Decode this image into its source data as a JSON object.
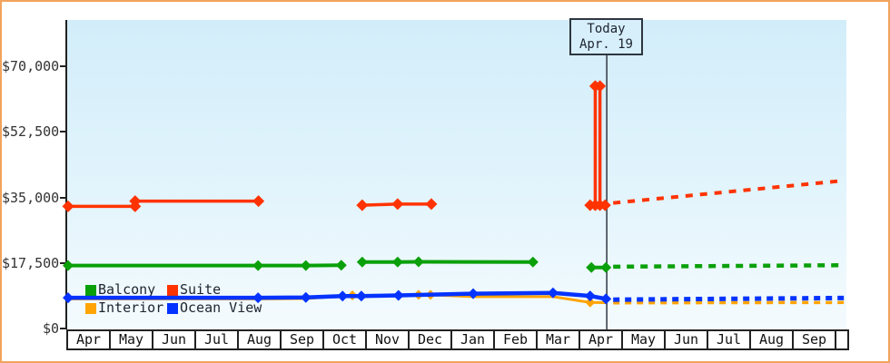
{
  "frame": {
    "border_color": "#f2a35c",
    "plot_bg_top": "#d2edfa",
    "plot_bg_bottom": "#f4fbfe"
  },
  "today_box": {
    "line1": "Today",
    "line2": "Apr. 19"
  },
  "legend": {
    "items": [
      {
        "id": "balcony",
        "label": "Balcony",
        "color": "#0aa00a"
      },
      {
        "id": "suite",
        "label": "Suite",
        "color": "#ff3300"
      },
      {
        "id": "interior",
        "label": "Interior",
        "color": "#ffa405"
      },
      {
        "id": "ocean-view",
        "label": "Ocean View",
        "color": "#0433ff"
      }
    ]
  },
  "chart_data": {
    "type": "line",
    "title": "",
    "xlabel": "",
    "ylabel": "",
    "ylim": [
      0,
      70000
    ],
    "grid": false,
    "legend_position": "bottom-left-inside",
    "y_ticks": [
      {
        "label": "$70,000",
        "value": 70000
      },
      {
        "label": "$52,500",
        "value": 52500
      },
      {
        "label": "$35,000",
        "value": 35000
      },
      {
        "label": "$17,500",
        "value": 17500
      },
      {
        "label": "$0",
        "value": 0
      }
    ],
    "x_tick_labels": [
      "Apr",
      "May",
      "Jun",
      "Jul",
      "Aug",
      "Sep",
      "Oct",
      "Nov",
      "Dec",
      "Jan",
      "Feb",
      "Mar",
      "Apr",
      "May",
      "Jun",
      "Jul",
      "Aug",
      "Sep"
    ],
    "x_unit": "months_from_first_Apr",
    "today": {
      "label_line1": "Today",
      "label_line2": "Apr. 19",
      "month_offset": 12.62
    },
    "series": [
      {
        "name": "Interior",
        "color": "#ffa405",
        "stroke_width": 3,
        "marker_r": 5.5,
        "dash": "7 6",
        "segments": [
          {
            "points": [
              [
                0,
                7900
              ],
              [
                4.45,
                7900
              ],
              [
                5.57,
                8000
              ],
              [
                6.44,
                8650
              ],
              [
                6.66,
                8850
              ],
              [
                6.89,
                8650
              ],
              [
                7.74,
                8850
              ],
              [
                8.21,
                9000
              ],
              [
                8.49,
                9000
              ],
              [
                9.49,
                8500
              ],
              [
                11.36,
                8500
              ],
              [
                12.23,
                6950
              ],
              [
                12.6,
                6900
              ]
            ],
            "markers": [
              [
                6.66,
                8850
              ],
              [
                8.21,
                9000
              ],
              [
                8.49,
                9000
              ],
              [
                12.23,
                6950
              ]
            ]
          }
        ],
        "projection": [
          [
            12.77,
            6850
          ],
          [
            18.19,
            6950
          ]
        ]
      },
      {
        "name": "Balcony",
        "color": "#0aa00a",
        "stroke_width": 4,
        "marker_r": 6,
        "dash": "8 7",
        "segments": [
          {
            "points": [
              [
                0,
                16800
              ],
              [
                4.45,
                16800
              ],
              [
                5.57,
                16800
              ],
              [
                6.4,
                16900
              ]
            ]
          },
          {
            "points": [
              [
                6.89,
                17750
              ],
              [
                7.72,
                17750
              ],
              [
                8.21,
                17800
              ],
              [
                10.89,
                17750
              ]
            ]
          },
          {
            "points": [
              [
                12.26,
                16300
              ],
              [
                12.6,
                16300
              ]
            ]
          }
        ],
        "projection": [
          [
            12.77,
            16500
          ],
          [
            18.19,
            16900
          ]
        ]
      },
      {
        "name": "Suite",
        "color": "#ff3300",
        "stroke_width": 3.5,
        "marker_r": 6.5,
        "dash": "8 8",
        "segments": [
          {
            "points": [
              [
                0,
                32600
              ],
              [
                1.57,
                32600
              ],
              [
                1.57,
                34000
              ],
              [
                4.46,
                34000
              ]
            ]
          },
          {
            "points": [
              [
                6.89,
                32900
              ],
              [
                7.72,
                33200
              ],
              [
                8.51,
                33200
              ]
            ]
          },
          {
            "points": [
              [
                12.23,
                32900
              ],
              [
                12.35,
                32900
              ],
              [
                12.35,
                64700
              ],
              [
                12.46,
                64700
              ],
              [
                12.46,
                32900
              ],
              [
                12.58,
                32900
              ]
            ]
          }
        ],
        "projection": [
          [
            12.77,
            33500
          ],
          [
            18.19,
            39500
          ]
        ]
      },
      {
        "name": "Ocean View",
        "color": "#0433ff",
        "stroke_width": 4.5,
        "marker_r": 6,
        "dash": "7 6",
        "segments": [
          {
            "points": [
              [
                0,
                8200
              ],
              [
                4.45,
                8200
              ],
              [
                5.57,
                8300
              ],
              [
                6.43,
                8650
              ],
              [
                6.87,
                8650
              ],
              [
                7.74,
                8850
              ],
              [
                9.49,
                9300
              ],
              [
                11.36,
                9500
              ],
              [
                12.23,
                8700
              ],
              [
                12.6,
                7900
              ]
            ]
          }
        ],
        "projection": [
          [
            12.77,
            7700
          ],
          [
            18.19,
            8150
          ]
        ]
      }
    ]
  }
}
